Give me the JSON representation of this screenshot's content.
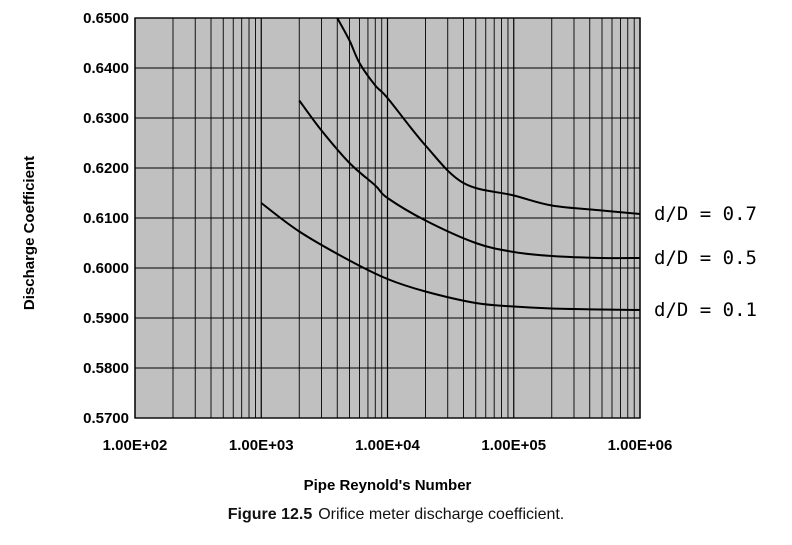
{
  "chart_data": {
    "type": "line",
    "xscale": "log",
    "xlim": [
      100,
      1000000
    ],
    "ylim": [
      0.57,
      0.65
    ],
    "xticks": [
      "1.00E+02",
      "1.00E+03",
      "1.00E+04",
      "1.00E+05",
      "1.00E+06"
    ],
    "xtick_values": [
      100,
      1000,
      10000,
      100000,
      1000000
    ],
    "yticks": [
      "0.5700",
      "0.5800",
      "0.5900",
      "0.6000",
      "0.6100",
      "0.6200",
      "0.6300",
      "0.6400",
      "0.6500"
    ],
    "ytick_values": [
      0.57,
      0.58,
      0.59,
      0.6,
      0.61,
      0.62,
      0.63,
      0.64,
      0.65
    ],
    "xlabel": "Pipe Reynold's Number",
    "ylabel": "Discharge Coefficient",
    "grid": true,
    "background": "#c0c0c0",
    "line_color": "#000000",
    "series": [
      {
        "name": "d/D = 0.7",
        "x": [
          4000,
          5000,
          6000,
          8000,
          10000,
          20000,
          40000,
          100000,
          200000,
          500000,
          1000000
        ],
        "y": [
          0.65,
          0.6455,
          0.641,
          0.6365,
          0.634,
          0.6245,
          0.617,
          0.6145,
          0.6125,
          0.6115,
          0.6108
        ]
      },
      {
        "name": "d/D = 0.5",
        "x": [
          2000,
          3000,
          5000,
          8000,
          10000,
          20000,
          50000,
          100000,
          200000,
          500000,
          1000000
        ],
        "y": [
          0.6335,
          0.6275,
          0.621,
          0.6165,
          0.614,
          0.6095,
          0.605,
          0.6032,
          0.6024,
          0.602,
          0.602
        ]
      },
      {
        "name": "d/D = 0.1",
        "x": [
          1000,
          2000,
          5000,
          10000,
          20000,
          50000,
          100000,
          200000,
          500000,
          1000000
        ],
        "y": [
          0.613,
          0.6073,
          0.6015,
          0.5978,
          0.5953,
          0.593,
          0.5923,
          0.5919,
          0.5917,
          0.5916
        ]
      }
    ]
  },
  "caption": {
    "label": "Figure 12.5",
    "text": "Orifice meter discharge coefficient."
  }
}
